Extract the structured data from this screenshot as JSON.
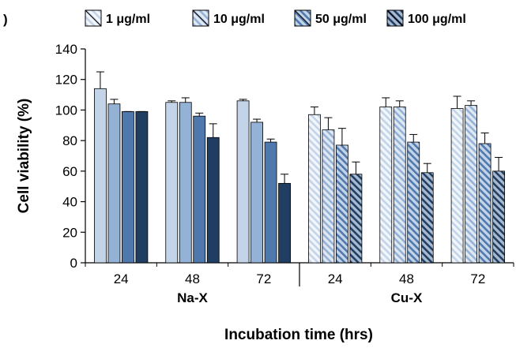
{
  "panel_label": ")",
  "chart_data": {
    "type": "bar",
    "title": "",
    "xlabel": "Incubation time (hrs)",
    "ylabel": "Cell viability (%)",
    "ylim": [
      0,
      140
    ],
    "yticks": [
      0,
      20,
      40,
      60,
      80,
      100,
      120,
      140
    ],
    "grid": false,
    "legend_position": "top",
    "groups": [
      {
        "label": "Na-X",
        "style": "solid",
        "categories": [
          "24",
          "48",
          "72"
        ],
        "series": [
          {
            "name": "1 μg/ml",
            "values": [
              114,
              105,
              106
            ],
            "errors": [
              11,
              1,
              1
            ]
          },
          {
            "name": "10 μg/ml",
            "values": [
              104,
              105,
              92
            ],
            "errors": [
              3,
              3,
              2
            ]
          },
          {
            "name": "50 μg/ml",
            "values": [
              99,
              96,
              79
            ],
            "errors": [
              0,
              2,
              2
            ]
          },
          {
            "name": "100 μg/ml",
            "values": [
              99,
              82,
              52
            ],
            "errors": [
              0,
              9,
              6
            ]
          }
        ]
      },
      {
        "label": "Cu-X",
        "style": "hatched",
        "categories": [
          "24",
          "48",
          "72"
        ],
        "series": [
          {
            "name": "1 μg/ml",
            "values": [
              97,
              102,
              101
            ],
            "errors": [
              5,
              6,
              8
            ]
          },
          {
            "name": "10 μg/ml",
            "values": [
              87,
              102,
              103
            ],
            "errors": [
              8,
              4,
              3
            ]
          },
          {
            "name": "50 μg/ml",
            "values": [
              77,
              79,
              78
            ],
            "errors": [
              11,
              5,
              7
            ]
          },
          {
            "name": "100 μg/ml",
            "values": [
              58,
              59,
              60
            ],
            "errors": [
              8,
              6,
              9
            ]
          }
        ]
      }
    ],
    "legend": [
      "1 μg/ml",
      "10 μg/ml",
      "50 μg/ml",
      "100 μg/ml"
    ],
    "colors": {
      "series_fill": [
        "#c3d4e9",
        "#94b1d6",
        "#4f78ad",
        "#203e62"
      ],
      "hatch_light": [
        "#f2f6fb",
        "#dfe8f3",
        "#c3d3e8",
        "#a9bad0"
      ],
      "outline": "#000000"
    }
  }
}
